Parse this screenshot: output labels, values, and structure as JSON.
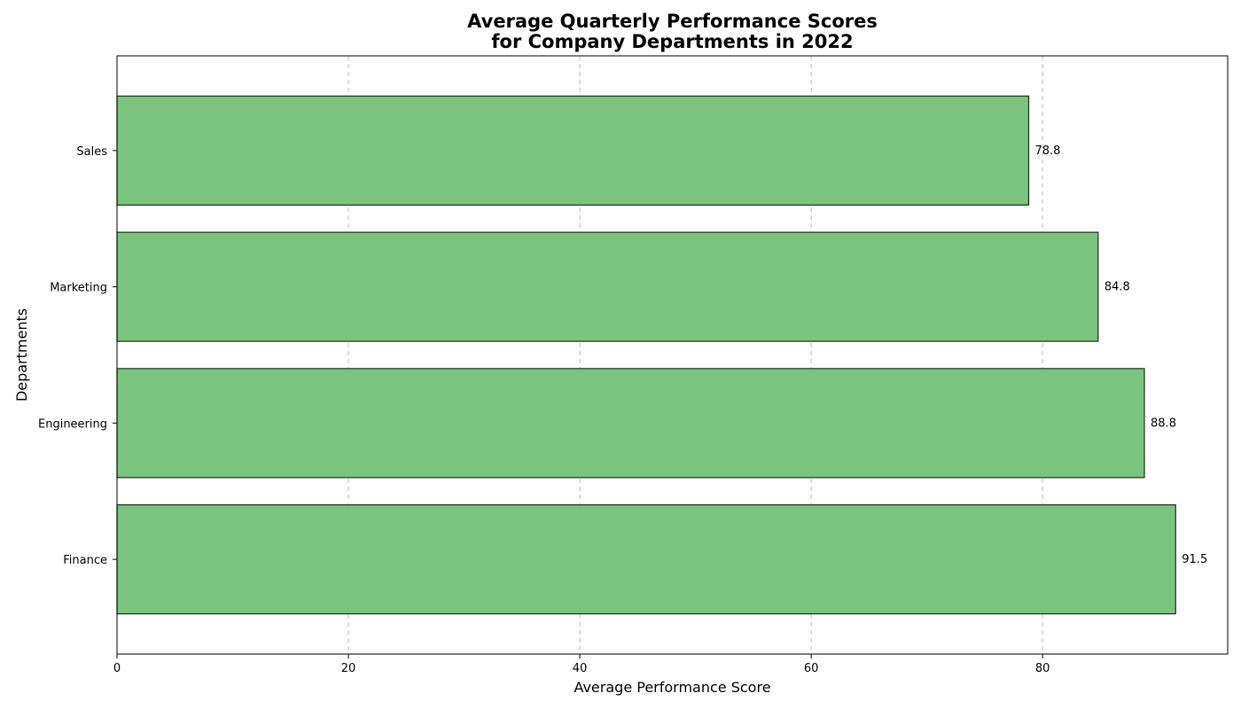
{
  "chart_data": {
    "type": "bar",
    "orientation": "horizontal",
    "title_lines": [
      "Average Quarterly Performance Scores",
      "for Company Departments in 2022"
    ],
    "xlabel": "Average Performance Score",
    "ylabel": "Departments",
    "categories": [
      "Finance",
      "Engineering",
      "Marketing",
      "Sales"
    ],
    "values": [
      91.5,
      88.8,
      84.8,
      78.8
    ],
    "value_labels": [
      "91.5",
      "88.8",
      "84.8",
      "78.8"
    ],
    "xlim": [
      0,
      96
    ],
    "xticks": [
      0,
      20,
      40,
      60,
      80
    ],
    "xtick_labels": [
      "0",
      "20",
      "40",
      "60",
      "80"
    ],
    "grid": "x-axis dashed",
    "legend": "none",
    "colors": {
      "bar_fill": "#7bc47f",
      "bar_edge": "#1a2e1a"
    }
  }
}
